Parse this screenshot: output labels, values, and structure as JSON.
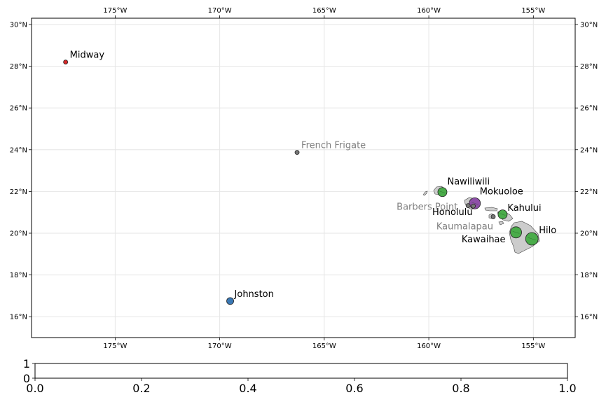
{
  "map": {
    "lon_range": [
      -179,
      -153
    ],
    "lat_range": [
      15,
      30.3
    ],
    "grid": true,
    "lon_ticks": [
      {
        "value": -175,
        "label": "175°W"
      },
      {
        "value": -170,
        "label": "170°W"
      },
      {
        "value": -165,
        "label": "165°W"
      },
      {
        "value": -160,
        "label": "160°W"
      },
      {
        "value": -155,
        "label": "155°W"
      }
    ],
    "lat_ticks": [
      {
        "value": 16,
        "label": "16°N"
      },
      {
        "value": 18,
        "label": "18°N"
      },
      {
        "value": 20,
        "label": "20°N"
      },
      {
        "value": 22,
        "label": "22°N"
      },
      {
        "value": 24,
        "label": "24°N"
      },
      {
        "value": 26,
        "label": "26°N"
      },
      {
        "value": 28,
        "label": "28°N"
      },
      {
        "value": 30,
        "label": "30°N"
      }
    ],
    "colors": {
      "land": "#cccccc",
      "green": "#4aac4a",
      "purple": "#8e4fa8",
      "red": "#d62728",
      "blue": "#3a78b4",
      "gray": "#777777",
      "muted_label": "#808080"
    },
    "markers": [
      {
        "name": "Midway",
        "lon": -177.37,
        "lat": 28.2,
        "color": "red",
        "size": 3
      },
      {
        "name": "French Frigate",
        "lon": -166.3,
        "lat": 23.87,
        "color": "gray",
        "size": 3,
        "muted": true
      },
      {
        "name": "Johnston",
        "lon": -169.5,
        "lat": 16.75,
        "color": "blue",
        "size": 5
      },
      {
        "name": "Nawiliwili",
        "lon": -159.35,
        "lat": 21.97,
        "color": "green",
        "size": 6.5
      },
      {
        "name": "Mokuoloe",
        "lon": -157.8,
        "lat": 21.43,
        "color": "purple",
        "size": 8
      },
      {
        "name": "Honolulu",
        "lon": -157.87,
        "lat": 21.3,
        "color": "gray",
        "size": 3
      },
      {
        "name": "Barbers Point",
        "lon": -158.12,
        "lat": 21.32,
        "color": "gray",
        "size": 3,
        "muted": true
      },
      {
        "name": "Kahului",
        "lon": -156.47,
        "lat": 20.9,
        "color": "green",
        "size": 6.5
      },
      {
        "name": "Kaumalapau",
        "lon": -156.92,
        "lat": 20.79,
        "color": "gray",
        "size": 3,
        "muted": true
      },
      {
        "name": "Kawaihae",
        "lon": -155.83,
        "lat": 20.04,
        "color": "green",
        "size": 8
      },
      {
        "name": "Hilo",
        "lon": -155.07,
        "lat": 19.73,
        "color": "green",
        "size": 9
      }
    ]
  },
  "colorbar": {
    "y_ticks": [
      "1",
      "0"
    ],
    "x_ticks": [
      "0.0",
      "0.2",
      "0.4",
      "0.6",
      "0.8",
      "1.0"
    ]
  }
}
